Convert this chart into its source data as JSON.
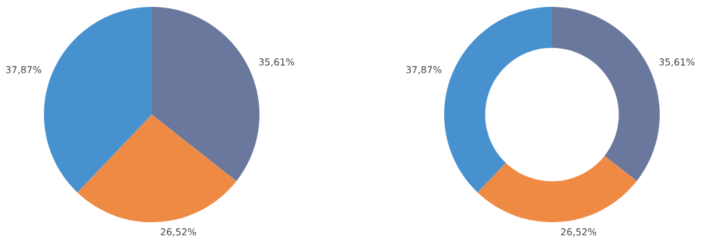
{
  "chart_data": [
    {
      "type": "pie",
      "categories": [
        null,
        null,
        null
      ],
      "values": [
        35.61,
        26.52,
        37.87
      ],
      "colors": [
        "#6b789d",
        "#ef8a45",
        "#4791cf"
      ],
      "value_labels": [
        "35,61%",
        "26,52%",
        "37,87%"
      ]
    },
    {
      "type": "donut",
      "categories": [
        null,
        null,
        null
      ],
      "values": [
        35.61,
        26.52,
        37.87
      ],
      "colors": [
        "#6b789d",
        "#ef8a45",
        "#4791cf"
      ],
      "value_labels": [
        "35,61%",
        "26,52%",
        "37,87%"
      ]
    }
  ]
}
